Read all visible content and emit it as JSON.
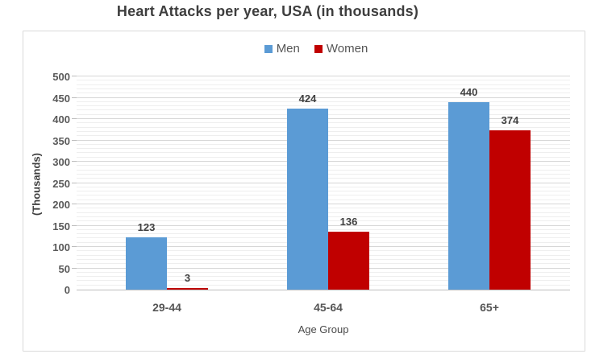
{
  "title": "Heart Attacks per year, USA (in thousands)",
  "chart_data": {
    "type": "bar",
    "title": "Heart Attacks per year, USA (in thousands)",
    "categories": [
      "29-44",
      "45-64",
      "65+"
    ],
    "series": [
      {
        "name": "Men",
        "color": "#5B9BD5",
        "values": [
          123,
          424,
          440
        ]
      },
      {
        "name": "Women",
        "color": "#C00000",
        "values": [
          3,
          136,
          374
        ]
      }
    ],
    "xlabel": "Age Group",
    "ylabel": "(Thousands)",
    "ylim": [
      0,
      500
    ],
    "yticks": [
      0,
      50,
      100,
      150,
      200,
      250,
      300,
      350,
      400,
      450,
      500
    ],
    "ytick_step": 50,
    "minor_grid_step": 10,
    "grid": true,
    "data_labels": true,
    "legend_position": "top"
  }
}
